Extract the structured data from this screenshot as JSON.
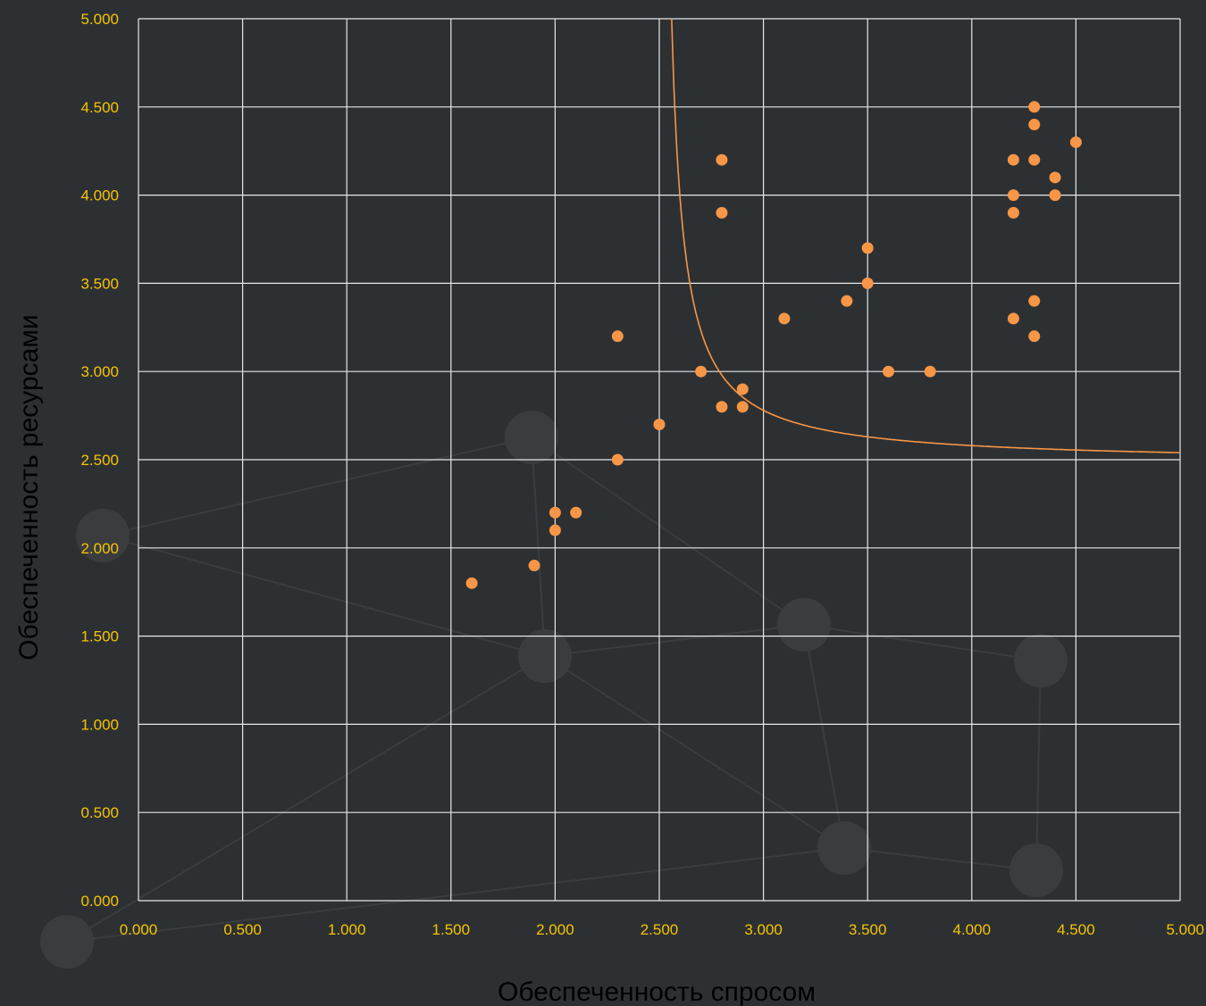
{
  "chart_data": {
    "type": "scatter",
    "title": "",
    "xlabel": "Обеспеченность спросом",
    "ylabel": "Обеспеченность ресурсами",
    "xlim": [
      0,
      5
    ],
    "ylim": [
      0,
      5
    ],
    "xticks": [
      "0.000",
      "0.500",
      "1.000",
      "1.500",
      "2.000",
      "2.500",
      "3.000",
      "3.500",
      "4.000",
      "4.500",
      "5.000"
    ],
    "yticks": [
      "0.000",
      "0.500",
      "1.000",
      "1.500",
      "2.000",
      "2.500",
      "3.000",
      "3.500",
      "4.000",
      "4.500",
      "5.000"
    ],
    "grid": true,
    "colors": {
      "background": "#2d3033",
      "grid": "#e6e6e6",
      "tick_text": "#f5c400",
      "axis_title": "#f5c400",
      "points": "#f79646",
      "curve": "#f79646"
    },
    "series": [
      {
        "points": [
          {
            "x": 1.6,
            "y": 1.8
          },
          {
            "x": 1.9,
            "y": 1.9
          },
          {
            "x": 2.0,
            "y": 2.2
          },
          {
            "x": 2.0,
            "y": 2.1
          },
          {
            "x": 2.1,
            "y": 2.2
          },
          {
            "x": 2.3,
            "y": 3.2
          },
          {
            "x": 2.3,
            "y": 2.5
          },
          {
            "x": 2.5,
            "y": 2.7
          },
          {
            "x": 2.7,
            "y": 3.0
          },
          {
            "x": 2.8,
            "y": 4.2
          },
          {
            "x": 2.8,
            "y": 3.9
          },
          {
            "x": 2.8,
            "y": 2.8
          },
          {
            "x": 2.9,
            "y": 2.9
          },
          {
            "x": 2.9,
            "y": 2.8
          },
          {
            "x": 3.1,
            "y": 3.3
          },
          {
            "x": 3.4,
            "y": 3.4
          },
          {
            "x": 3.5,
            "y": 3.7
          },
          {
            "x": 3.5,
            "y": 3.5
          },
          {
            "x": 3.6,
            "y": 3.0
          },
          {
            "x": 3.8,
            "y": 3.0
          },
          {
            "x": 4.2,
            "y": 4.2
          },
          {
            "x": 4.2,
            "y": 4.0
          },
          {
            "x": 4.2,
            "y": 3.9
          },
          {
            "x": 4.2,
            "y": 3.3
          },
          {
            "x": 4.3,
            "y": 4.5
          },
          {
            "x": 4.3,
            "y": 4.4
          },
          {
            "x": 4.3,
            "y": 4.2
          },
          {
            "x": 4.3,
            "y": 3.4
          },
          {
            "x": 4.3,
            "y": 3.2
          },
          {
            "x": 4.4,
            "y": 4.1
          },
          {
            "x": 4.4,
            "y": 4.0
          },
          {
            "x": 4.5,
            "y": 4.3
          }
        ]
      }
    ],
    "curve": {
      "type": "hyperbola",
      "asymptote_x": 2.5,
      "asymptote_y": 2.48,
      "k": 0.15
    }
  }
}
